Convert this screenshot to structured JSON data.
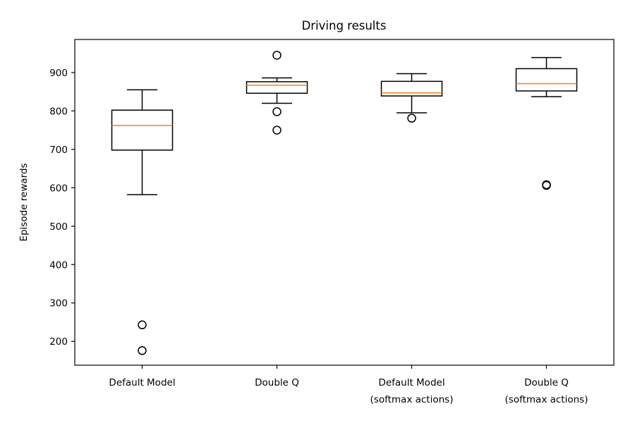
{
  "chart_data": {
    "type": "box",
    "title": "Driving results",
    "xlabel": "",
    "ylabel": "Episode rewards",
    "ylim": [
      138,
      986
    ],
    "yticks": [
      200,
      300,
      400,
      500,
      600,
      700,
      800,
      900
    ],
    "grid": false,
    "legend": "none",
    "categories": [
      {
        "label": [
          "Default Model"
        ]
      },
      {
        "label": [
          "Double Q"
        ]
      },
      {
        "label": [
          "Default Model",
          "(softmax actions)"
        ]
      },
      {
        "label": [
          "Double Q",
          "(softmax actions)"
        ]
      }
    ],
    "boxes": [
      {
        "whisker_low": 582,
        "q1": 698,
        "median": 762,
        "q3": 802,
        "whisker_high": 855,
        "fliers": [
          243,
          176
        ]
      },
      {
        "whisker_low": 820,
        "q1": 846,
        "median": 867,
        "q3": 876,
        "whisker_high": 886,
        "fliers": [
          945,
          798,
          750
        ]
      },
      {
        "whisker_low": 795,
        "q1": 839,
        "median": 847,
        "q3": 877,
        "whisker_high": 897,
        "fliers": [
          781
        ]
      },
      {
        "whisker_low": 837,
        "q1": 852,
        "median": 871,
        "q3": 910,
        "whisker_high": 939,
        "fliers": [
          608,
          606
        ]
      }
    ],
    "colors": {
      "box": "#000000",
      "median": "#ff7f0e",
      "flier": "#000000"
    }
  }
}
